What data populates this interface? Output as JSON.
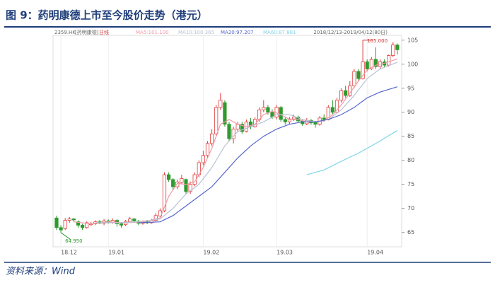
{
  "chart_data": {
    "type": "candlestick",
    "title": "图 9：药明康德上市至今股价走势（港元）",
    "symbol": "2359.HK",
    "name": "[药明康德]",
    "period": "日线",
    "range": "2018/12/13-2019/04/12(80日)",
    "source": "资料来源：Wind",
    "categories": [
      null,
      "18.12",
      null,
      null,
      null,
      null,
      null,
      null,
      null,
      null,
      null,
      null,
      "19.01",
      null,
      null,
      null,
      null,
      null,
      null,
      null,
      null,
      null,
      null,
      null,
      null,
      null,
      null,
      null,
      null,
      null,
      null,
      null,
      null,
      null,
      "19.02",
      null,
      null,
      null,
      null,
      null,
      null,
      null,
      null,
      null,
      null,
      null,
      null,
      null,
      null,
      null,
      null,
      "19.03",
      null,
      null,
      null,
      null,
      null,
      null,
      null,
      null,
      null,
      null,
      null,
      null,
      null,
      null,
      null,
      null,
      null,
      null,
      null,
      null,
      "19.04",
      null,
      null,
      null,
      null,
      null,
      null,
      null
    ],
    "open": [
      68,
      66,
      65.8,
      67.5,
      67.8,
      67.2,
      66.5,
      66,
      66.6,
      66.8,
      67.2,
      66.9,
      67.4,
      67,
      67.5,
      66.8,
      66.6,
      67.2,
      67.8,
      67.3,
      66.9,
      67.2,
      67,
      67.5,
      68.4,
      69.5,
      77,
      76,
      74.5,
      75.4,
      76,
      73.5,
      75,
      77,
      79.5,
      81,
      83.5,
      85.5,
      91,
      92,
      87.5,
      84.5,
      86.5,
      87.5,
      86,
      88,
      87,
      88.5,
      90.5,
      91,
      90,
      89,
      91,
      88.5,
      88,
      88.6,
      89,
      88.2,
      87.6,
      88.3,
      88,
      87.5,
      88.8,
      88.5,
      91,
      90,
      92.5,
      94.5,
      93.5,
      95.5,
      98.5,
      97,
      100.5,
      99,
      101,
      99.5,
      100.5,
      99.8,
      101.8,
      104
    ],
    "high": [
      68.5,
      66.5,
      68,
      68.2,
      68,
      67.5,
      66.8,
      67.3,
      67.2,
      67.5,
      67.6,
      67.8,
      67.7,
      67.9,
      67.8,
      67,
      67.6,
      68.2,
      68,
      67.6,
      67.5,
      67.6,
      67.8,
      69,
      70,
      77.5,
      77.5,
      76.3,
      76,
      77,
      76.2,
      75.6,
      77.5,
      80,
      82,
      84,
      86.5,
      91.5,
      94,
      92.5,
      88,
      87,
      88,
      88,
      88.5,
      88.8,
      89,
      91,
      92.5,
      91.5,
      90.6,
      91.5,
      91.3,
      88.9,
      89,
      89.5,
      89.3,
      88.5,
      88.8,
      88.6,
      88.2,
      89.2,
      89.6,
      91.5,
      92.5,
      93,
      95,
      95.5,
      96.5,
      99,
      99,
      105,
      101,
      101.5,
      103.5,
      101,
      101,
      102,
      104.6,
      104.3
    ],
    "low": [
      65.5,
      64.95,
      65.5,
      67,
      67.2,
      66,
      65.5,
      65.8,
      66.3,
      66.5,
      66.7,
      66.5,
      66.8,
      66.8,
      66.2,
      66,
      66.3,
      67,
      67,
      66.5,
      66.6,
      66.7,
      66.8,
      67.3,
      68,
      69.2,
      75.5,
      73.8,
      74,
      75,
      73,
      73,
      74.6,
      76.5,
      79,
      80.5,
      83,
      85,
      90.5,
      87,
      84,
      83.5,
      86,
      85.5,
      85.8,
      86.5,
      86.8,
      88,
      90,
      89.5,
      88.6,
      88.5,
      88,
      87.4,
      87.6,
      88.2,
      87.8,
      87.2,
      87.3,
      87.4,
      86.8,
      87.2,
      88,
      88.3,
      89.6,
      89.8,
      92,
      93,
      93.2,
      95,
      96.5,
      96.8,
      98.5,
      98.8,
      99,
      99,
      99.3,
      99.5,
      101.5,
      102
    ],
    "close": [
      66,
      65.5,
      67.5,
      67.8,
      67.6,
      66.5,
      66,
      67,
      66.8,
      67.2,
      66.9,
      67.4,
      67.1,
      67.5,
      66.8,
      66.5,
      67.3,
      67.8,
      67.4,
      66.9,
      67.2,
      67,
      67.5,
      68.5,
      69.5,
      77,
      76,
      74.5,
      75.5,
      76.2,
      73.5,
      75,
      77,
      79.5,
      81,
      83.5,
      85.5,
      91,
      92.5,
      87.5,
      84.5,
      86.5,
      87.5,
      86,
      88,
      87,
      88.5,
      90.5,
      91,
      90,
      89,
      91,
      88.5,
      88,
      88.6,
      89,
      88.2,
      87.6,
      88.3,
      87.8,
      87.5,
      88.8,
      88.5,
      91,
      90,
      92.5,
      94.5,
      93.5,
      95.5,
      98.5,
      97,
      100.5,
      99,
      101,
      99.5,
      100.5,
      99.8,
      101.8,
      104,
      103
    ],
    "up_color": "#e23c3c",
    "down_color": "#2e9a2e",
    "series": [
      {
        "name": "MA5:101.100",
        "color": "#f09aa6",
        "x": [
          4,
          8,
          12,
          16,
          20,
          24,
          26,
          28,
          30,
          32,
          34,
          36,
          38,
          40,
          42,
          44,
          46,
          48,
          50,
          52,
          54,
          56,
          58,
          60,
          62,
          64,
          66,
          68,
          70,
          72,
          74,
          76,
          79
        ],
        "values": [
          67.2,
          66.8,
          67.2,
          67,
          67.2,
          68,
          72.5,
          75.2,
          75,
          75.5,
          78.5,
          82.5,
          87.5,
          88.5,
          87.5,
          87,
          87.5,
          89.5,
          90.2,
          89.5,
          88.5,
          88.5,
          88,
          88,
          88.2,
          89.5,
          91.5,
          94,
          96.5,
          98.8,
          99.8,
          100.2,
          101.1
        ]
      },
      {
        "name": "MA10:100.365",
        "color": "#b9c2d6",
        "x": [
          9,
          14,
          19,
          24,
          27,
          30,
          33,
          36,
          39,
          42,
          45,
          48,
          51,
          54,
          57,
          60,
          63,
          66,
          69,
          72,
          75,
          79
        ],
        "values": [
          67,
          67,
          67.2,
          67.8,
          70,
          73,
          75,
          78.5,
          83,
          86,
          87,
          88,
          89.5,
          89.5,
          88.5,
          88,
          88.5,
          90.5,
          93.5,
          97,
          99,
          100.4
        ]
      },
      {
        "name": "MA20:97.207",
        "color": "#5566cc",
        "x": [
          19,
          24,
          27,
          30,
          33,
          36,
          39,
          42,
          45,
          48,
          51,
          54,
          57,
          60,
          63,
          66,
          69,
          72,
          75,
          79
        ],
        "values": [
          67,
          67.2,
          68.5,
          70.5,
          72.5,
          74.5,
          77.5,
          80.5,
          83,
          85,
          86.5,
          87.5,
          88,
          88,
          88.5,
          89.5,
          91,
          93,
          94.2,
          95.3
        ]
      },
      {
        "name": "MA60:87.881",
        "color": "#7fd6e8",
        "x": [
          58,
          62,
          66,
          70,
          74,
          79
        ],
        "values": [
          77,
          78,
          79.8,
          81.5,
          83.5,
          86.2
        ]
      }
    ],
    "annotations": [
      {
        "text": "105.000",
        "index": 71,
        "value": 105
      },
      {
        "text": "64.950",
        "index": 1,
        "value": 64.95
      }
    ],
    "ylim": [
      62,
      106
    ],
    "yticks": [
      65,
      70,
      75,
      80,
      85,
      90,
      95,
      100,
      105
    ],
    "grid": false
  }
}
